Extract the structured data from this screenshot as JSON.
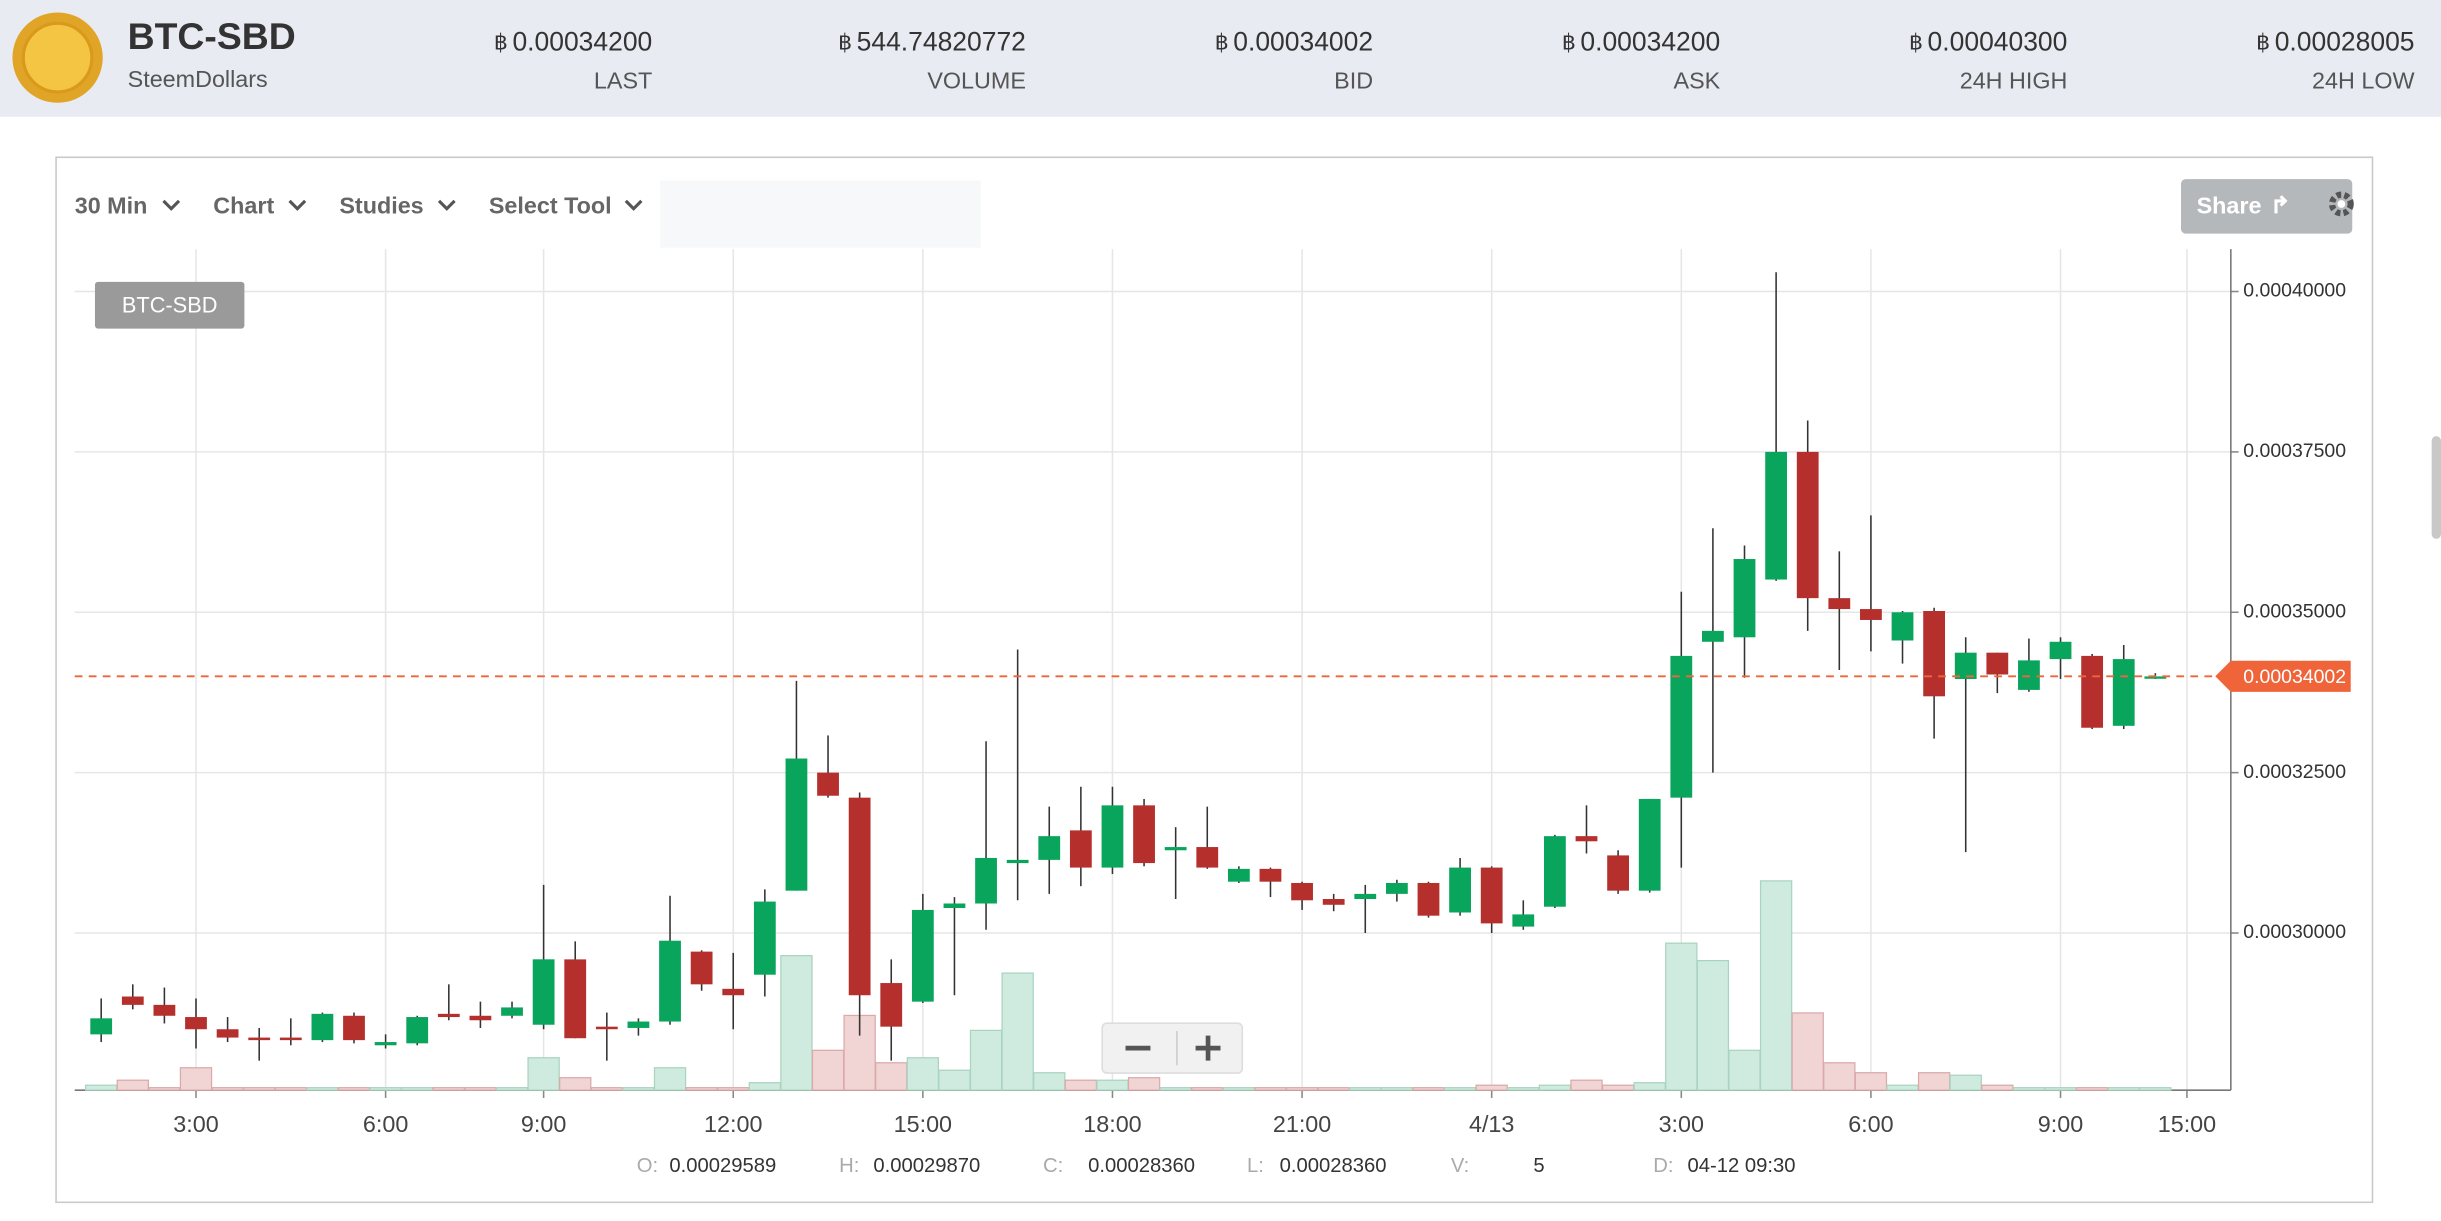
{
  "header": {
    "pair": "BTC-SBD",
    "name": "SteemDollars",
    "currency": "฿",
    "stats": [
      {
        "value": "0.00034200",
        "label": "LAST"
      },
      {
        "value": "544.74820772",
        "label": "VOLUME"
      },
      {
        "value": "0.00034002",
        "label": "BID"
      },
      {
        "value": "0.00034200",
        "label": "ASK"
      },
      {
        "value": "0.00040300",
        "label": "24H HIGH"
      },
      {
        "value": "0.00028005",
        "label": "24H LOW"
      }
    ]
  },
  "toolbar": {
    "items": [
      "30 Min",
      "Chart",
      "Studies",
      "Select Tool"
    ],
    "share": "Share"
  },
  "hover": [
    {
      "key": "O:",
      "value": "0.00029589"
    },
    {
      "key": "H:",
      "value": "0.00029870"
    },
    {
      "key": "C:",
      "value": "0.00028360"
    },
    {
      "key": "L:",
      "value": "0.00028360"
    },
    {
      "key": "V:",
      "value": "5"
    },
    {
      "key": "D:",
      "value": "04-12 09:30"
    }
  ],
  "chart_data": {
    "type": "candlestick",
    "name": "BTC-SBD",
    "up_color": "#0aa55c",
    "down_color": "#b5302d",
    "grid": true,
    "categories": [
      null,
      null,
      null,
      "3:00",
      null,
      null,
      null,
      null,
      null,
      "6:00",
      null,
      null,
      null,
      null,
      "9:00",
      null,
      null,
      null,
      null,
      null,
      "12:00",
      null,
      null,
      null,
      null,
      null,
      "15:00",
      null,
      null,
      null,
      null,
      null,
      "18:00",
      null,
      null,
      null,
      null,
      null,
      "21:00",
      null,
      null,
      null,
      null,
      null,
      "4/13",
      null,
      null,
      null,
      null,
      null,
      "3:00",
      null,
      null,
      null,
      null,
      null,
      "6:00",
      null,
      null,
      null,
      null,
      null,
      "9:00",
      null,
      null,
      null,
      "15:00"
    ],
    "open": [
      0.0002842,
      0.0002901,
      0.0002888,
      0.0002869,
      0.000285,
      0.0002837,
      0.0002837,
      0.0002833,
      0.0002871,
      0.0002825,
      0.0002828,
      0.0002874,
      0.0002871,
      0.0002871,
      0.0002857,
      0.00029589,
      0.0002854,
      0.0002852,
      0.0002862,
      0.0002971,
      0.0002913,
      0.0002935,
      0.0003066,
      0.000325,
      0.0003211,
      0.0002922,
      0.0002893,
      0.0003039,
      0.0003046,
      0.0003109,
      0.0003114,
      0.000316,
      0.0003102,
      0.0003199,
      0.0003129,
      0.0003134,
      0.000308,
      0.00031,
      0.0003078,
      0.0003053,
      0.0003053,
      0.0003061,
      0.0003078,
      0.0003032,
      0.0003102,
      0.000301,
      0.0003041,
      0.0003151,
      0.0003121,
      0.0003066,
      0.0003211,
      0.0003454,
      0.0003461,
      0.0003551,
      0.000375,
      0.0003522,
      0.0003505,
      0.0003456,
      0.0003502,
      0.0003396,
      0.0003437,
      0.0003379,
      0.0003427,
      0.0003432,
      0.0003323,
      0.0003398,
      null
    ],
    "high": [
      0.0002898,
      0.000292,
      0.0002915,
      0.0002898,
      0.0002869,
      0.0002852,
      0.0002867,
      0.0002876,
      0.0002876,
      0.0002842,
      0.0002871,
      0.000292,
      0.0002893,
      0.0002893,
      0.0003075,
      0.0002987,
      0.0002876,
      0.0002867,
      0.0003058,
      0.0002973,
      0.0002969,
      0.0003068,
      0.0003393,
      0.0003308,
      0.0003219,
      0.0002959,
      0.0003061,
      0.0003056,
      0.0003299,
      0.0003442,
      0.0003197,
      0.0003228,
      0.0003228,
      0.0003209,
      0.0003165,
      0.0003197,
      0.0003104,
      0.0003102,
      0.000308,
      0.0003061,
      0.0003075,
      0.0003083,
      0.000308,
      0.0003117,
      0.0003104,
      0.0003051,
      0.0003153,
      0.0003199,
      0.0003129,
      0.0003209,
      0.0003532,
      0.0003631,
      0.0003604,
      0.000403,
      0.0003799,
      0.0003595,
      0.0003651,
      0.0003502,
      0.0003507,
      0.0003461,
      0.0003437,
      0.0003459,
      0.0003461,
      0.0003435,
      0.0003449,
      0.0003405,
      null
    ],
    "low": [
      0.000283,
      0.0002881,
      0.0002859,
      0.000282,
      0.000283,
      0.0002801,
      0.0002825,
      0.000283,
      0.0002828,
      0.000282,
      0.0002825,
      0.0002864,
      0.0002852,
      0.0002867,
      0.000285,
      0.0002836,
      0.0002801,
      0.000284,
      0.0002857,
      0.000291,
      0.000285,
      0.0002901,
      0.0003066,
      0.0003211,
      0.000284,
      0.0002801,
      0.0002891,
      0.0002903,
      0.0003005,
      0.0003051,
      0.0003061,
      0.0003073,
      0.0003092,
      0.0003104,
      0.0003053,
      0.00031,
      0.0003078,
      0.0003056,
      0.0003036,
      0.0003034,
      0.0003,
      0.0003049,
      0.0003024,
      0.0003027,
      0.0003,
      0.0003005,
      0.0003039,
      0.0003124,
      0.0003061,
      0.0003063,
      0.0003102,
      0.000325,
      0.0003398,
      0.0003549,
      0.0003471,
      0.000341,
      0.0003439,
      0.000342,
      0.0003303,
      0.0003126,
      0.0003374,
      0.0003376,
      0.0003396,
      0.0003318,
      0.0003318,
      0.0003396,
      null
    ],
    "close": [
      0.0002867,
      0.0002888,
      0.0002871,
      0.000285,
      0.0002837,
      0.0002833,
      0.0002833,
      0.0002874,
      0.0002833,
      0.000283,
      0.0002869,
      0.0002869,
      0.0002864,
      0.0002884,
      0.0002959,
      0.0002836,
      0.000285,
      0.0002862,
      0.0002988,
      0.000292,
      0.0002903,
      0.0003049,
      0.0003272,
      0.0003214,
      0.0002903,
      0.0002854,
      0.0003036,
      0.0003046,
      0.0003117,
      0.0003114,
      0.0003151,
      0.0003102,
      0.0003199,
      0.0003109,
      0.0003134,
      0.0003102,
      0.00031,
      0.000308,
      0.0003051,
      0.0003044,
      0.0003061,
      0.0003078,
      0.0003027,
      0.0003102,
      0.0003015,
      0.0003029,
      0.0003151,
      0.0003143,
      0.0003066,
      0.0003209,
      0.0003432,
      0.0003471,
      0.0003583,
      0.000375,
      0.0003522,
      0.0003505,
      0.0003488,
      0.00035,
      0.0003369,
      0.0003437,
      0.0003403,
      0.0003425,
      0.0003454,
      0.000332,
      0.0003427,
      0.00034,
      null
    ],
    "volume": [
      2,
      4,
      1,
      9,
      1,
      1,
      1,
      1,
      1,
      1,
      1,
      1,
      1,
      1,
      13,
      5,
      1,
      1,
      9,
      1,
      1,
      3,
      54,
      16,
      30,
      11,
      13,
      8,
      24,
      47,
      7,
      4,
      4,
      5,
      1,
      1,
      1,
      1,
      1,
      1,
      1,
      1,
      1,
      1,
      2,
      1,
      2,
      4,
      2,
      3,
      59,
      52,
      16,
      84,
      31,
      11,
      7,
      2,
      7,
      6,
      2,
      1,
      1,
      1,
      1,
      1,
      null
    ],
    "ylim": [
      0.0002755,
      0.0004066
    ],
    "yticks": [
      {
        "value": 0.0003,
        "label": "0.00030000"
      },
      {
        "value": 0.000325,
        "label": "0.00032500"
      },
      {
        "value": 0.00035,
        "label": "0.00035000"
      },
      {
        "value": 0.000375,
        "label": "0.00037500"
      },
      {
        "value": 0.0004,
        "label": "0.00040000"
      }
    ],
    "last_price": {
      "value": 0.00034002,
      "label": "0.00034002",
      "color": "#f0643a"
    }
  }
}
